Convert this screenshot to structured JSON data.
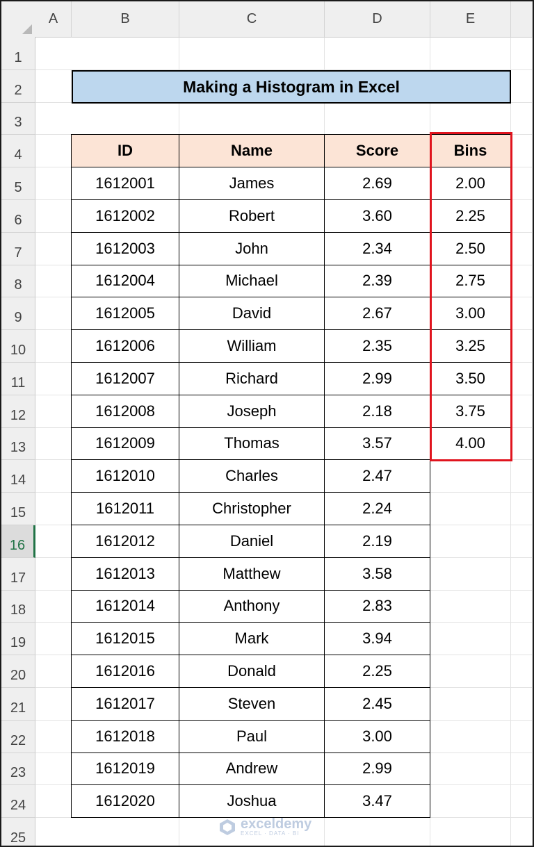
{
  "sheet": {
    "columns": [
      "A",
      "B",
      "C",
      "D",
      "E"
    ],
    "rows": [
      "1",
      "2",
      "3",
      "4",
      "5",
      "6",
      "7",
      "8",
      "9",
      "10",
      "11",
      "12",
      "13",
      "14",
      "15",
      "16",
      "17",
      "18",
      "19",
      "20",
      "21",
      "22",
      "23",
      "24",
      "25"
    ],
    "active_row": "16"
  },
  "title": "Making a Histogram in Excel",
  "table": {
    "headers": [
      "ID",
      "Name",
      "Score",
      "Bins"
    ],
    "rows": [
      {
        "id": "1612001",
        "name": "James",
        "score": "2.69",
        "bin": "2.00"
      },
      {
        "id": "1612002",
        "name": "Robert",
        "score": "3.60",
        "bin": "2.25"
      },
      {
        "id": "1612003",
        "name": "John",
        "score": "2.34",
        "bin": "2.50"
      },
      {
        "id": "1612004",
        "name": "Michael",
        "score": "2.39",
        "bin": "2.75"
      },
      {
        "id": "1612005",
        "name": "David",
        "score": "2.67",
        "bin": "3.00"
      },
      {
        "id": "1612006",
        "name": "William",
        "score": "2.35",
        "bin": "3.25"
      },
      {
        "id": "1612007",
        "name": "Richard",
        "score": "2.99",
        "bin": "3.50"
      },
      {
        "id": "1612008",
        "name": "Joseph",
        "score": "2.18",
        "bin": "3.75"
      },
      {
        "id": "1612009",
        "name": "Thomas",
        "score": "3.57",
        "bin": "4.00"
      },
      {
        "id": "1612010",
        "name": "Charles",
        "score": "2.47"
      },
      {
        "id": "1612011",
        "name": "Christopher",
        "score": "2.24"
      },
      {
        "id": "1612012",
        "name": "Daniel",
        "score": "2.19"
      },
      {
        "id": "1612013",
        "name": "Matthew",
        "score": "3.58"
      },
      {
        "id": "1612014",
        "name": "Anthony",
        "score": "2.83"
      },
      {
        "id": "1612015",
        "name": "Mark",
        "score": "3.94"
      },
      {
        "id": "1612016",
        "name": "Donald",
        "score": "2.25"
      },
      {
        "id": "1612017",
        "name": "Steven",
        "score": "2.45"
      },
      {
        "id": "1612018",
        "name": "Paul",
        "score": "3.00"
      },
      {
        "id": "1612019",
        "name": "Andrew",
        "score": "2.99"
      },
      {
        "id": "1612020",
        "name": "Joshua",
        "score": "3.47"
      }
    ]
  },
  "highlight_color": "#e0141e",
  "header_fill": "#fce4d6",
  "title_fill": "#bdd7ee",
  "watermark": {
    "name": "exceldemy",
    "tagline": "EXCEL · DATA · BI"
  }
}
